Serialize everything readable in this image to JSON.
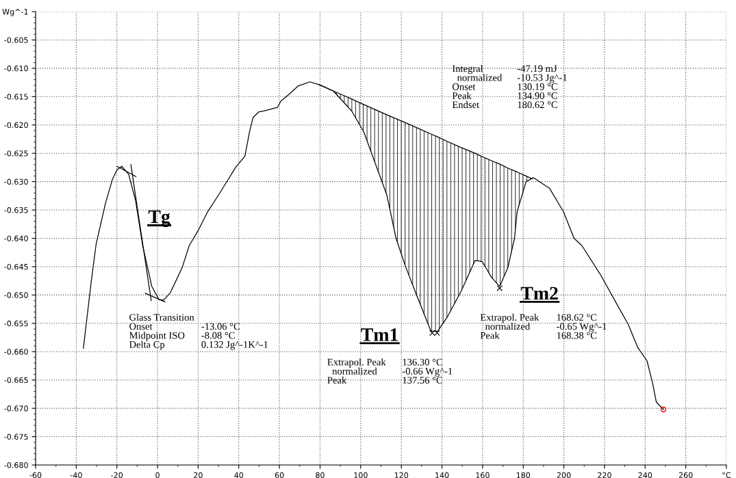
{
  "chart_data": {
    "type": "line",
    "xlim": [
      -60,
      280
    ],
    "ylim": [
      -0.68,
      -0.6
    ],
    "xticks": [
      -60,
      -40,
      -20,
      0,
      20,
      40,
      60,
      80,
      100,
      120,
      140,
      160,
      180,
      200,
      220,
      240,
      260,
      {
        "value": 280,
        "label": "°C"
      }
    ],
    "yticks": [
      {
        "value": -0.68,
        "label": "-0.680"
      },
      -0.675,
      {
        "value": -0.67,
        "label": "-0.670"
      },
      -0.665,
      {
        "value": -0.66,
        "label": "-0.660"
      },
      -0.655,
      {
        "value": -0.65,
        "label": "-0.650"
      },
      -0.645,
      {
        "value": -0.64,
        "label": "-0.640"
      },
      -0.635,
      {
        "value": -0.63,
        "label": "-0.630"
      },
      -0.625,
      {
        "value": -0.62,
        "label": "-0.620"
      },
      -0.615,
      {
        "value": -0.61,
        "label": "-0.610"
      },
      -0.605,
      {
        "value": -0.6,
        "label": "Wg^-1"
      }
    ],
    "grid": true,
    "legend": false,
    "series": [
      {
        "type": "line",
        "color": "#000000",
        "x": [
          79.6,
          86.5,
          95.5,
          101.5,
          112.9,
          117.4,
          122,
          127.7,
          134.6,
          137.9,
          142.6,
          149.5,
          156.3,
          159.8,
          164.4,
          168.4,
          172.4,
          175.7,
          177,
          181.4,
          184.5
        ],
        "lower": [
          -0.6129,
          -0.614,
          -0.6175,
          -0.6212,
          -0.6324,
          -0.64,
          -0.6449,
          -0.6502,
          -0.6564,
          -0.6564,
          -0.6539,
          -0.6493,
          -0.6439,
          -0.6441,
          -0.6469,
          -0.6485,
          -0.6452,
          -0.64,
          -0.6353,
          -0.63,
          -0.6295
        ],
        "upper": [
          -0.6129,
          -0.614,
          -0.6154,
          -0.6164,
          -0.6182,
          -0.6189,
          -0.6196,
          -0.6205,
          -0.6216,
          -0.6221,
          -0.6229,
          -0.624,
          -0.625,
          -0.6256,
          -0.6263,
          -0.6269,
          -0.6276,
          -0.6281,
          -0.6283,
          -0.629,
          -0.6295
        ],
        "values": [
          -0.6129,
          -0.614,
          -0.6154,
          -0.6164,
          -0.6182,
          -0.6189,
          -0.6196,
          -0.6205,
          -0.6216,
          -0.6221,
          -0.6229,
          -0.624,
          -0.625,
          -0.6256,
          -0.6263,
          -0.6269,
          -0.6276,
          -0.6281,
          -0.6283,
          -0.629,
          -0.6295
        ]
      },
      {
        "color": "#000000",
        "x": [
          -36.5,
          -32.5,
          -30.2,
          -25.6,
          -22.2,
          -19.9,
          -17.6,
          -14.2,
          -10.8,
          -7.3,
          -2.8,
          0.7,
          3,
          6.3,
          12.1,
          15.6,
          20.2,
          24.7,
          30.5,
          35.5,
          38.4,
          43,
          45.3,
          47,
          49.8,
          52.5,
          59,
          60.7,
          64.7,
          69.3,
          75,
          79.6,
          86.5,
          95.5,
          101.5,
          112.9,
          117.4,
          122,
          127.7,
          134.6,
          137.9,
          142.6,
          149.5,
          156.3,
          159.8,
          164.4,
          168.4,
          172.4,
          175.7,
          177,
          181.4,
          185,
          193,
          199.8,
          205,
          208.9,
          218,
          227,
          231.7,
          236.4,
          240.9,
          243.7,
          245.5,
          249
        ],
        "values": [
          -0.6594,
          -0.6473,
          -0.641,
          -0.6338,
          -0.6296,
          -0.6279,
          -0.6273,
          -0.6287,
          -0.6333,
          -0.6413,
          -0.6485,
          -0.6508,
          -0.6509,
          -0.6496,
          -0.6452,
          -0.6413,
          -0.6385,
          -0.6353,
          -0.6321,
          -0.6292,
          -0.6275,
          -0.6255,
          -0.6212,
          -0.6187,
          -0.6177,
          -0.6175,
          -0.6169,
          -0.6158,
          -0.6146,
          -0.6131,
          -0.6124,
          -0.6129,
          -0.614,
          -0.6175,
          -0.6212,
          -0.6324,
          -0.64,
          -0.6449,
          -0.6502,
          -0.6564,
          -0.6564,
          -0.6539,
          -0.6493,
          -0.6439,
          -0.6441,
          -0.6469,
          -0.6485,
          -0.6452,
          -0.64,
          -0.6353,
          -0.63,
          -0.6293,
          -0.6312,
          -0.6353,
          -0.64,
          -0.6413,
          -0.6464,
          -0.6522,
          -0.6552,
          -0.6593,
          -0.6616,
          -0.6656,
          -0.6689,
          -0.6702
        ]
      },
      {
        "type": "line",
        "color": "#000000",
        "x": [
          -19.9,
          -10.6
        ],
        "values": [
          -0.6273,
          -0.6291
        ]
      },
      {
        "type": "line",
        "color": "#000000",
        "x": [
          -13.1,
          -3.1
        ],
        "values": [
          -0.627,
          -0.651
        ]
      },
      {
        "type": "line",
        "color": "#000000",
        "x": [
          -6,
          3.6
        ],
        "values": [
          -0.6497,
          -0.6512
        ]
      },
      {
        "type": "scatter",
        "color": "#000000",
        "marker": "cross",
        "x": [
          135.2,
          137.6,
          168.4
        ],
        "values": [
          -0.6567,
          -0.6567,
          -0.6488
        ]
      },
      {
        "type": "scatter",
        "color": "#ff0000",
        "marker": "circle",
        "x": [
          249
        ],
        "values": [
          -0.6702
        ]
      }
    ],
    "annotations": [
      "Tg",
      "Glass Transition\nOnset\nMidpoint ISO\nDelta Cp",
      "\n-13.06 °C\n-8.08 °C\n0.132 Jg^-1K^-1",
      "Tm1",
      "Extrapol. Peak\n  normalized\nPeak",
      "136.30 °C\n-0.66 Wg^-1\n137.56 °C",
      "Tm2",
      "Extrapol. Peak\n  normalized\nPeak",
      "168.62 °C\n-0.65 Wg^-1\n168.38 °C",
      "Integral\n  normalized\nOnset\nPeak\nEndset",
      "-47.19 mJ\n-10.53 Jg^-1\n130.19 °C\n134.90 °C\n180.62 °C"
    ]
  }
}
